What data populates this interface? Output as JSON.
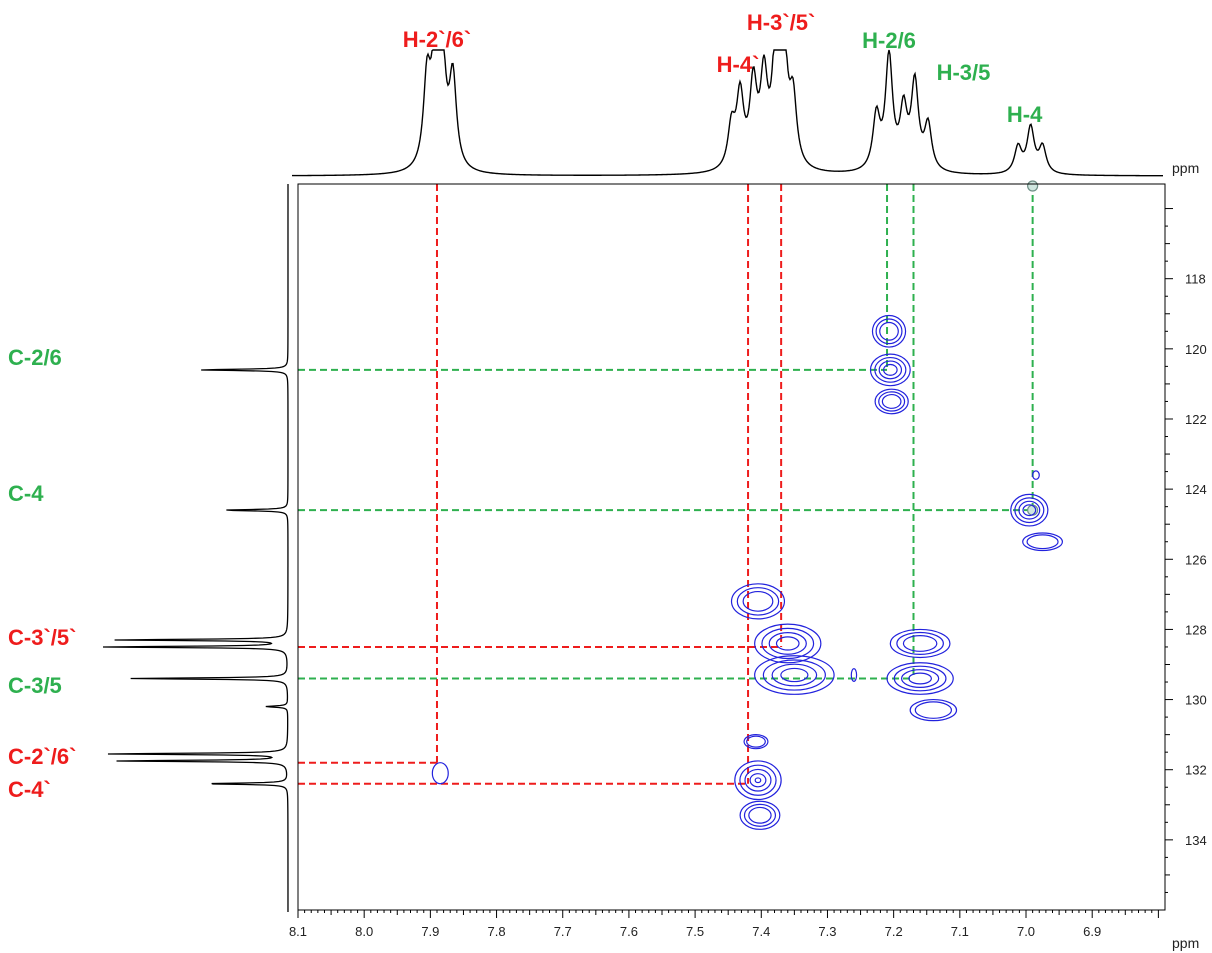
{
  "chart_data": {
    "type": "scatter",
    "subtype": "2D HSQC NMR contour plot with 1D projections",
    "title": "",
    "xlabel": "ppm",
    "ylabel": "ppm",
    "x_unit": "ppm",
    "y_unit": "ppm",
    "xlim": [
      8.1,
      6.79
    ],
    "ylim": [
      115.3,
      136.0
    ],
    "x_reversed": true,
    "x_ticks": [
      "8.1",
      "8.0",
      "7.9",
      "7.8",
      "7.7",
      "7.6",
      "7.5",
      "7.4",
      "7.3",
      "7.2",
      "7.1",
      "7.0",
      "6.9"
    ],
    "y_ticks": [
      "118",
      "120",
      "122",
      "124",
      "126",
      "128",
      "130",
      "132",
      "134"
    ],
    "colors": {
      "ring_a": "#2eb04f",
      "ring_b": "#ee1c1c",
      "contour": "#2222dd",
      "spectrum": "#000000"
    },
    "proton_labels": [
      {
        "text": "H-2`/6`",
        "ppm": 7.89,
        "group": "ring_b"
      },
      {
        "text": "H-4`",
        "ppm": 7.42,
        "group": "ring_b"
      },
      {
        "text": "H-3`/5`",
        "ppm": 7.37,
        "group": "ring_b"
      },
      {
        "text": "H-2/6",
        "ppm": 7.21,
        "group": "ring_a"
      },
      {
        "text": "H-3/5",
        "ppm": 7.17,
        "group": "ring_a"
      },
      {
        "text": "H-4",
        "ppm": 6.99,
        "group": "ring_a"
      }
    ],
    "carbon_labels": [
      {
        "text": "C-2/6",
        "ppm": 120.6,
        "group": "ring_a"
      },
      {
        "text": "C-4",
        "ppm": 124.6,
        "group": "ring_a"
      },
      {
        "text": "C-3`/5`",
        "ppm": 128.5,
        "group": "ring_b"
      },
      {
        "text": "C-3/5",
        "ppm": 129.4,
        "group": "ring_a"
      },
      {
        "text": "C-2`/6`",
        "ppm": 131.8,
        "group": "ring_b"
      },
      {
        "text": "C-4`",
        "ppm": 132.4,
        "group": "ring_b"
      }
    ],
    "correlations": [
      {
        "assignment": "H-2`/6` / C-2`/6`",
        "h": 7.89,
        "c": 131.8,
        "group": "ring_b"
      },
      {
        "assignment": "H-4` / C-4`",
        "h": 7.42,
        "c": 132.4,
        "group": "ring_b"
      },
      {
        "assignment": "H-3`/5` / C-3`/5`",
        "h": 7.37,
        "c": 128.5,
        "group": "ring_b"
      },
      {
        "assignment": "H-2/6 / C-2/6",
        "h": 7.21,
        "c": 120.6,
        "group": "ring_a"
      },
      {
        "assignment": "H-3/5 / C-3/5",
        "h": 7.17,
        "c": 129.4,
        "group": "ring_a"
      },
      {
        "assignment": "H-4 / C-4",
        "h": 6.99,
        "c": 124.6,
        "group": "ring_a"
      }
    ],
    "contours": [
      {
        "h": 7.885,
        "c": 132.1,
        "rh": 0.012,
        "rc": 0.3,
        "levels": 1
      },
      {
        "h": 7.408,
        "c": 131.2,
        "rh": 0.018,
        "rc": 0.2,
        "levels": 2
      },
      {
        "h": 7.405,
        "c": 132.3,
        "rh": 0.035,
        "rc": 0.55,
        "levels": 5
      },
      {
        "h": 7.402,
        "c": 133.3,
        "rh": 0.03,
        "rc": 0.4,
        "levels": 3
      },
      {
        "h": 7.405,
        "c": 127.2,
        "rh": 0.04,
        "rc": 0.5,
        "levels": 3
      },
      {
        "h": 7.36,
        "c": 128.4,
        "rh": 0.05,
        "rc": 0.55,
        "levels": 4
      },
      {
        "h": 7.35,
        "c": 129.3,
        "rh": 0.06,
        "rc": 0.55,
        "levels": 4
      },
      {
        "h": 7.207,
        "c": 119.5,
        "rh": 0.025,
        "rc": 0.45,
        "levels": 3
      },
      {
        "h": 7.205,
        "c": 120.6,
        "rh": 0.03,
        "rc": 0.45,
        "levels": 4
      },
      {
        "h": 7.203,
        "c": 121.5,
        "rh": 0.025,
        "rc": 0.35,
        "levels": 3
      },
      {
        "h": 7.16,
        "c": 128.4,
        "rh": 0.045,
        "rc": 0.4,
        "levels": 3
      },
      {
        "h": 7.16,
        "c": 129.4,
        "rh": 0.05,
        "rc": 0.45,
        "levels": 4
      },
      {
        "h": 7.14,
        "c": 130.3,
        "rh": 0.035,
        "rc": 0.3,
        "levels": 2
      },
      {
        "h": 7.26,
        "c": 129.3,
        "rh": 0.004,
        "rc": 0.18,
        "levels": 1
      },
      {
        "h": 6.995,
        "c": 124.6,
        "rh": 0.028,
        "rc": 0.45,
        "levels": 4
      },
      {
        "h": 6.985,
        "c": 123.6,
        "rh": 0.005,
        "rc": 0.12,
        "levels": 1
      },
      {
        "h": 6.975,
        "c": 125.5,
        "rh": 0.03,
        "rc": 0.25,
        "levels": 2
      }
    ],
    "proton_spectrum_peaks": [
      {
        "ppm": 7.905,
        "height": 0.72
      },
      {
        "ppm": 7.893,
        "height": 0.85
      },
      {
        "ppm": 7.882,
        "height": 0.87
      },
      {
        "ppm": 7.866,
        "height": 0.75
      },
      {
        "ppm": 7.445,
        "height": 0.35
      },
      {
        "ppm": 7.432,
        "height": 0.6
      },
      {
        "ppm": 7.412,
        "height": 0.68
      },
      {
        "ppm": 7.396,
        "height": 0.72
      },
      {
        "ppm": 7.378,
        "height": 0.95
      },
      {
        "ppm": 7.366,
        "height": 0.98
      },
      {
        "ppm": 7.352,
        "height": 0.55
      },
      {
        "ppm": 7.226,
        "height": 0.45
      },
      {
        "ppm": 7.207,
        "height": 0.94
      },
      {
        "ppm": 7.185,
        "height": 0.48
      },
      {
        "ppm": 7.168,
        "height": 0.72
      },
      {
        "ppm": 7.148,
        "height": 0.38
      },
      {
        "ppm": 7.012,
        "height": 0.22
      },
      {
        "ppm": 6.993,
        "height": 0.38
      },
      {
        "ppm": 6.975,
        "height": 0.22
      }
    ],
    "carbon_spectrum_peaks": [
      {
        "ppm": 120.6,
        "height": 0.48
      },
      {
        "ppm": 124.6,
        "height": 0.35
      },
      {
        "ppm": 128.3,
        "height": 0.93
      },
      {
        "ppm": 128.5,
        "height": 1.0
      },
      {
        "ppm": 129.4,
        "height": 0.85
      },
      {
        "ppm": 130.2,
        "height": 0.12
      },
      {
        "ppm": 131.55,
        "height": 0.97
      },
      {
        "ppm": 131.75,
        "height": 0.92
      },
      {
        "ppm": 132.4,
        "height": 0.45
      }
    ]
  }
}
